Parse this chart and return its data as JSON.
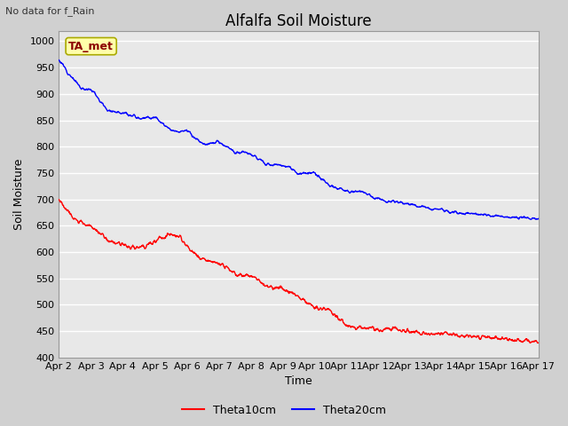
{
  "title": "Alfalfa Soil Moisture",
  "subtitle": "No data for f_Rain",
  "xlabel": "Time",
  "ylabel": "Soil Moisture",
  "legend_label1": "Theta10cm",
  "legend_label2": "Theta20cm",
  "legend_box_label": "TA_met",
  "x_tick_labels": [
    "Apr 2",
    "Apr 3",
    "Apr 4",
    "Apr 5",
    "Apr 6",
    "Apr 7",
    "Apr 8",
    "Apr 9",
    "Apr 10",
    "Apr 11",
    "Apr 12",
    "Apr 13",
    "Apr 14",
    "Apr 15",
    "Apr 16",
    "Apr 17"
  ],
  "ylim": [
    400,
    1020
  ],
  "xlim": [
    0,
    15
  ],
  "color_line1": "#ff0000",
  "color_line2": "#0000ff",
  "fig_bg": "#d0d0d0",
  "ax_bg": "#e8e8e8",
  "grid_color": "#ffffff",
  "title_fontsize": 12,
  "axis_fontsize": 9,
  "tick_fontsize": 8,
  "figsize": [
    6.4,
    4.8
  ],
  "dpi": 100
}
